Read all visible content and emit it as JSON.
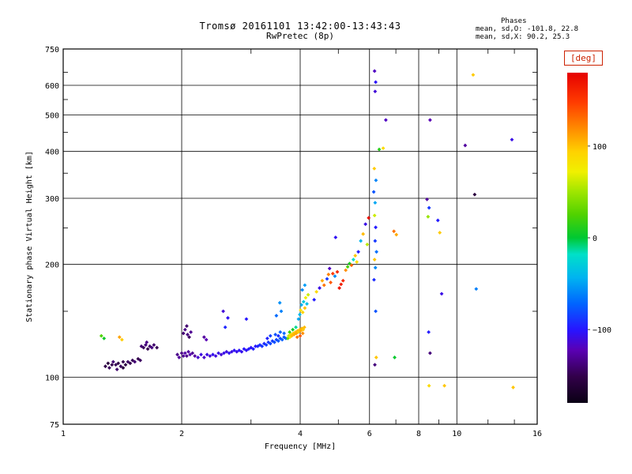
{
  "header": {
    "title": "Tromsø 20161101 13:42:00-13:43:43",
    "subtitle": "RwPretec (8p)"
  },
  "stats": {
    "heading": "Phases",
    "line1": "mean, sd,O: -101.8, 22.8",
    "line2": "mean, sd,X:  90.2, 25.3"
  },
  "chart_data": {
    "type": "scatter",
    "title": "Tromsø 20161101 13:42:00-13:43:43",
    "subtitle": "RwPretec (8p)",
    "xlabel": "Frequency [MHz]",
    "ylabel": "Stationary phase Virtual Height [km]",
    "xscale": "log",
    "yscale": "log",
    "xlim": [
      1,
      16
    ],
    "ylim": [
      75,
      750
    ],
    "xticks": [
      1,
      2,
      4,
      6,
      8,
      10,
      16
    ],
    "yticks": [
      75,
      100,
      200,
      300,
      400,
      500,
      600,
      750
    ],
    "x_gridlines": [
      2,
      4,
      6,
      8,
      10
    ],
    "y_gridlines": [
      100,
      200,
      300,
      400,
      500,
      600
    ],
    "x_minor_ticks": [
      3,
      5,
      7,
      9,
      12,
      14
    ],
    "y_minor_ticks": [
      150,
      250,
      350,
      450,
      550,
      650
    ],
    "grid": true,
    "frame_color": "#000000",
    "marker": "diamond",
    "marker_size": 2.4,
    "colorbar": {
      "label": "[deg]",
      "label_color": "#cc2200",
      "min": -180,
      "max": 180,
      "ticks": [
        100,
        0,
        -100
      ],
      "stops": [
        {
          "t": 0.0,
          "c": "#0a0014"
        },
        {
          "t": 0.08,
          "c": "#32004a"
        },
        {
          "t": 0.16,
          "c": "#5a00b4"
        },
        {
          "t": 0.22,
          "c": "#2814ff"
        },
        {
          "t": 0.3,
          "c": "#0064ff"
        },
        {
          "t": 0.38,
          "c": "#00b4f0"
        },
        {
          "t": 0.45,
          "c": "#00e0c8"
        },
        {
          "t": 0.5,
          "c": "#00c832"
        },
        {
          "t": 0.57,
          "c": "#50d200"
        },
        {
          "t": 0.64,
          "c": "#a0e600"
        },
        {
          "t": 0.7,
          "c": "#f0f000"
        },
        {
          "t": 0.76,
          "c": "#ffd200"
        },
        {
          "t": 0.83,
          "c": "#ff8c00"
        },
        {
          "t": 0.91,
          "c": "#ff3c00"
        },
        {
          "t": 1.0,
          "c": "#e60000"
        }
      ]
    },
    "points": [
      [
        1.28,
        107,
        -152
      ],
      [
        1.3,
        109,
        -158
      ],
      [
        1.31,
        106,
        -146
      ],
      [
        1.33,
        108,
        -150
      ],
      [
        1.34,
        110,
        -140
      ],
      [
        1.36,
        108,
        -148
      ],
      [
        1.37,
        105,
        -142
      ],
      [
        1.38,
        109,
        -154
      ],
      [
        1.4,
        107,
        -146
      ],
      [
        1.42,
        110,
        -150
      ],
      [
        1.42,
        106,
        -158
      ],
      [
        1.44,
        108,
        -155
      ],
      [
        1.46,
        110,
        -144
      ],
      [
        1.48,
        109,
        -150
      ],
      [
        1.5,
        111,
        -148
      ],
      [
        1.52,
        110,
        -140
      ],
      [
        1.55,
        112,
        -150
      ],
      [
        1.57,
        111,
        -145
      ],
      [
        1.25,
        129,
        25
      ],
      [
        1.27,
        127,
        5
      ],
      [
        1.39,
        128,
        110
      ],
      [
        1.41,
        126,
        95
      ],
      [
        1.58,
        121,
        -140
      ],
      [
        1.6,
        120,
        -146
      ],
      [
        1.62,
        122,
        -138
      ],
      [
        1.64,
        119,
        -150
      ],
      [
        1.66,
        121,
        -143
      ],
      [
        1.68,
        120,
        -136
      ],
      [
        1.7,
        122,
        -142
      ],
      [
        1.73,
        120,
        -148
      ],
      [
        1.63,
        124,
        -135
      ],
      [
        1.95,
        115,
        -134
      ],
      [
        1.97,
        113,
        -128
      ],
      [
        2.0,
        116,
        -136
      ],
      [
        2.02,
        114,
        -130
      ],
      [
        2.04,
        116,
        -126
      ],
      [
        2.06,
        114,
        -133
      ],
      [
        2.08,
        117,
        -129
      ],
      [
        2.1,
        115,
        -124
      ],
      [
        2.13,
        116,
        -131
      ],
      [
        2.16,
        114,
        -127
      ],
      [
        2.02,
        131,
        -140
      ],
      [
        2.04,
        134,
        -134
      ],
      [
        2.06,
        137,
        -142
      ],
      [
        2.07,
        130,
        -137
      ],
      [
        2.09,
        128,
        -144
      ],
      [
        2.11,
        132,
        -132
      ],
      [
        2.28,
        128,
        -128
      ],
      [
        2.31,
        126,
        -122
      ],
      [
        2.2,
        113,
        -114
      ],
      [
        2.24,
        115,
        -110
      ],
      [
        2.28,
        113,
        -116
      ],
      [
        2.32,
        115,
        -109
      ],
      [
        2.36,
        114,
        -112
      ],
      [
        2.4,
        115,
        -106
      ],
      [
        2.44,
        114,
        -111
      ],
      [
        2.48,
        116,
        -108
      ],
      [
        2.52,
        115,
        -113
      ],
      [
        2.56,
        116,
        -107
      ],
      [
        2.6,
        117,
        -110
      ],
      [
        2.64,
        116,
        -104
      ],
      [
        2.68,
        117,
        -109
      ],
      [
        2.72,
        118,
        -103
      ],
      [
        2.76,
        117,
        -107
      ],
      [
        2.8,
        118,
        -102
      ],
      [
        2.84,
        117,
        -106
      ],
      [
        2.88,
        119,
        -101
      ],
      [
        2.92,
        118,
        -104
      ],
      [
        2.96,
        119,
        -99
      ],
      [
        3.0,
        120,
        -102
      ],
      [
        3.04,
        119,
        -97
      ],
      [
        3.08,
        121,
        -100
      ],
      [
        2.55,
        150,
        -112
      ],
      [
        2.62,
        144,
        -104
      ],
      [
        2.58,
        136,
        -94
      ],
      [
        2.92,
        143,
        -100
      ],
      [
        3.12,
        121,
        -95
      ],
      [
        3.16,
        122,
        -91
      ],
      [
        3.2,
        121,
        -88
      ],
      [
        3.24,
        123,
        -92
      ],
      [
        3.28,
        122,
        -86
      ],
      [
        3.32,
        124,
        -89
      ],
      [
        3.36,
        123,
        -83
      ],
      [
        3.4,
        125,
        -86
      ],
      [
        3.44,
        124,
        -80
      ],
      [
        3.48,
        126,
        -83
      ],
      [
        3.52,
        125,
        -77
      ],
      [
        3.56,
        127,
        -80
      ],
      [
        3.6,
        126,
        -74
      ],
      [
        3.64,
        128,
        -77
      ],
      [
        3.68,
        127,
        -71
      ],
      [
        3.36,
        129,
        -85
      ],
      [
        3.46,
        130,
        -79
      ],
      [
        3.56,
        132,
        -73
      ],
      [
        3.64,
        131,
        -70
      ],
      [
        3.52,
        129,
        -92
      ],
      [
        3.3,
        127,
        -96
      ],
      [
        3.55,
        158,
        -56
      ],
      [
        3.58,
        150,
        -62
      ],
      [
        3.48,
        146,
        -70
      ],
      [
        3.72,
        127,
        35
      ],
      [
        3.74,
        129,
        60
      ],
      [
        3.77,
        128,
        82
      ],
      [
        3.79,
        130,
        92
      ],
      [
        3.81,
        129,
        101
      ],
      [
        3.84,
        131,
        96
      ],
      [
        3.86,
        130,
        106
      ],
      [
        3.89,
        132,
        99
      ],
      [
        3.91,
        131,
        108
      ],
      [
        3.94,
        133,
        104
      ],
      [
        3.96,
        132,
        96
      ],
      [
        3.99,
        134,
        101
      ],
      [
        4.01,
        133,
        109
      ],
      [
        4.04,
        135,
        104
      ],
      [
        4.07,
        134,
        97
      ],
      [
        4.1,
        136,
        102
      ],
      [
        3.76,
        132,
        18
      ],
      [
        3.83,
        134,
        8
      ],
      [
        3.9,
        136,
        -12
      ],
      [
        3.93,
        128,
        128
      ],
      [
        4.0,
        129,
        138
      ],
      [
        4.06,
        131,
        118
      ],
      [
        3.96,
        143,
        -48
      ],
      [
        3.99,
        147,
        -40
      ],
      [
        4.01,
        151,
        84
      ],
      [
        4.03,
        156,
        -44
      ],
      [
        4.06,
        149,
        92
      ],
      [
        4.08,
        159,
        -32
      ],
      [
        4.11,
        153,
        99
      ],
      [
        4.13,
        163,
        72
      ],
      [
        4.16,
        157,
        -38
      ],
      [
        4.19,
        166,
        62
      ],
      [
        4.05,
        171,
        -58
      ],
      [
        4.11,
        176,
        -52
      ],
      [
        4.34,
        161,
        -98
      ],
      [
        4.4,
        169,
        88
      ],
      [
        4.48,
        173,
        -108
      ],
      [
        4.55,
        181,
        108
      ],
      [
        4.6,
        176,
        128
      ],
      [
        4.68,
        183,
        -88
      ],
      [
        4.75,
        195,
        -118
      ],
      [
        4.78,
        179,
        138
      ],
      [
        4.84,
        189,
        148
      ],
      [
        4.9,
        186,
        -58
      ],
      [
        4.97,
        191,
        158
      ],
      [
        4.72,
        188,
        122
      ],
      [
        4.92,
        236,
        -104
      ],
      [
        5.03,
        173,
        168
      ],
      [
        5.08,
        177,
        163
      ],
      [
        5.14,
        181,
        158
      ],
      [
        5.22,
        193,
        118
      ],
      [
        5.28,
        197,
        22
      ],
      [
        5.34,
        201,
        8
      ],
      [
        5.4,
        199,
        132
      ],
      [
        5.46,
        206,
        -18
      ],
      [
        5.52,
        211,
        98
      ],
      [
        5.57,
        203,
        88
      ],
      [
        5.62,
        216,
        -98
      ],
      [
        5.7,
        231,
        -42
      ],
      [
        5.78,
        241,
        102
      ],
      [
        5.86,
        256,
        -108
      ],
      [
        5.92,
        226,
        58
      ],
      [
        5.97,
        266,
        172
      ],
      [
        6.18,
        655,
        -118
      ],
      [
        6.22,
        612,
        -102
      ],
      [
        6.2,
        578,
        -112
      ],
      [
        6.15,
        312,
        -78
      ],
      [
        6.2,
        292,
        -48
      ],
      [
        6.18,
        270,
        62
      ],
      [
        6.22,
        251,
        -98
      ],
      [
        6.2,
        231,
        -88
      ],
      [
        6.25,
        216,
        -68
      ],
      [
        6.18,
        206,
        98
      ],
      [
        6.21,
        196,
        -58
      ],
      [
        6.16,
        182,
        -92
      ],
      [
        6.22,
        150,
        -78
      ],
      [
        6.24,
        113,
        98
      ],
      [
        6.19,
        108,
        -138
      ],
      [
        6.23,
        335,
        -60
      ],
      [
        6.17,
        360,
        96
      ],
      [
        6.35,
        405,
        12
      ],
      [
        6.5,
        408,
        88
      ],
      [
        6.6,
        485,
        -118
      ],
      [
        6.92,
        245,
        128
      ],
      [
        7.02,
        240,
        108
      ],
      [
        6.95,
        113,
        2
      ],
      [
        8.55,
        485,
        -122
      ],
      [
        8.4,
        298,
        -128
      ],
      [
        8.5,
        283,
        -88
      ],
      [
        8.45,
        268,
        48
      ],
      [
        8.55,
        116,
        -138
      ],
      [
        8.5,
        95,
        88
      ],
      [
        8.48,
        132,
        -98
      ],
      [
        9.15,
        167,
        -108
      ],
      [
        9.3,
        95,
        98
      ],
      [
        8.95,
        262,
        -98
      ],
      [
        9.05,
        243,
        96
      ],
      [
        11.0,
        640,
        96
      ],
      [
        11.1,
        307,
        -158
      ],
      [
        11.2,
        172,
        -62
      ],
      [
        10.5,
        415,
        -128
      ],
      [
        13.8,
        430,
        -108
      ],
      [
        13.9,
        94,
        98
      ]
    ]
  }
}
